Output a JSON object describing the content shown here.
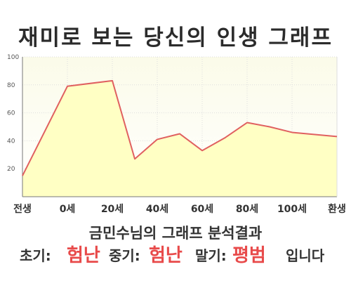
{
  "title": "재미로 보는 당신의 인생 그래프",
  "chart_data": {
    "type": "area",
    "x_categories": [
      "전생",
      "0세",
      "20세",
      "40세",
      "60세",
      "80세",
      "100세",
      "환생"
    ],
    "ylim": [
      0,
      100
    ],
    "y_ticks": [
      20,
      40,
      60,
      80,
      100
    ],
    "grid": true,
    "series": [
      {
        "points": [
          {
            "x": -20,
            "y": 15
          },
          {
            "x": 0,
            "y": 79
          },
          {
            "x": 20,
            "y": 83
          },
          {
            "x": 30,
            "y": 27
          },
          {
            "x": 40,
            "y": 41
          },
          {
            "x": 50,
            "y": 45
          },
          {
            "x": 60,
            "y": 33
          },
          {
            "x": 70,
            "y": 42
          },
          {
            "x": 80,
            "y": 53
          },
          {
            "x": 90,
            "y": 50
          },
          {
            "x": 100,
            "y": 46
          },
          {
            "x": 120,
            "y": 43
          }
        ]
      }
    ],
    "colors": {
      "plot_bg_top": "#fbfbe9",
      "area_fill": "#ffffc4",
      "line": "#e06060",
      "grid": "#dedede",
      "axis": "#777777"
    }
  },
  "result": {
    "heading": "금민수님의 그래프 분석결과",
    "early_label": "초기:",
    "early_value": "험난",
    "mid_label": "중기:",
    "mid_value": "험난",
    "late_label": "말기:",
    "late_value": "평범",
    "ending": "입니다",
    "value_color": "#e84a4a"
  }
}
